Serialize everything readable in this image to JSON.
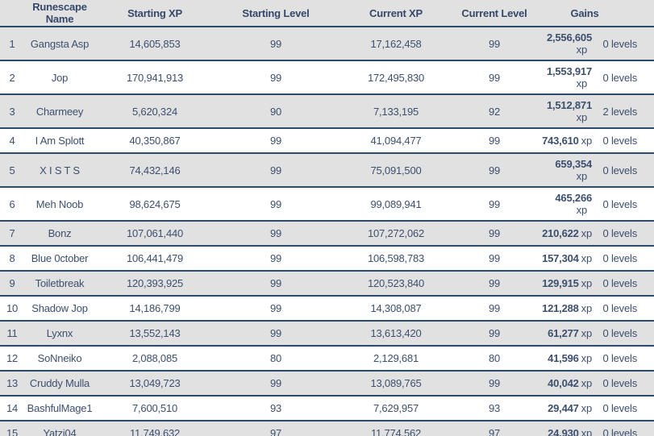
{
  "table": {
    "xp_unit": "xp",
    "columns": {
      "name": "Runescape Name",
      "starting_xp": "Starting XP",
      "starting_level": "Starting Level",
      "current_xp": "Current XP",
      "current_level": "Current Level",
      "gains": "Gains"
    },
    "rows": [
      {
        "rank": "1",
        "name": "Gangsta Asp",
        "starting_xp": "14,605,853",
        "starting_level": "99",
        "current_xp": "17,162,458",
        "current_level": "99",
        "gain_xp": "2,556,605",
        "gain_levels": "0 levels",
        "tall": "yes"
      },
      {
        "rank": "2",
        "name": "Jop",
        "starting_xp": "170,941,913",
        "starting_level": "99",
        "current_xp": "172,495,830",
        "current_level": "99",
        "gain_xp": "1,553,917",
        "gain_levels": "0 levels",
        "tall": "yes"
      },
      {
        "rank": "3",
        "name": "Charmeey",
        "starting_xp": "5,620,324",
        "starting_level": "90",
        "current_xp": "7,133,195",
        "current_level": "92",
        "gain_xp": "1,512,871",
        "gain_levels": "2 levels",
        "tall": "yes"
      },
      {
        "rank": "4",
        "name": "I Am Splott",
        "starting_xp": "40,350,867",
        "starting_level": "99",
        "current_xp": "41,094,477",
        "current_level": "99",
        "gain_xp": "743,610",
        "gain_levels": "0 levels",
        "tall": "no"
      },
      {
        "rank": "5",
        "name": "X I S T S",
        "starting_xp": "74,432,146",
        "starting_level": "99",
        "current_xp": "75,091,500",
        "current_level": "99",
        "gain_xp": "659,354",
        "gain_levels": "0 levels",
        "tall": "yes"
      },
      {
        "rank": "6",
        "name": "Meh Noob",
        "starting_xp": "98,624,675",
        "starting_level": "99",
        "current_xp": "99,089,941",
        "current_level": "99",
        "gain_xp": "465,266",
        "gain_levels": "0 levels",
        "tall": "yes"
      },
      {
        "rank": "7",
        "name": "Bonz",
        "starting_xp": "107,061,440",
        "starting_level": "99",
        "current_xp": "107,272,062",
        "current_level": "99",
        "gain_xp": "210,622",
        "gain_levels": "0 levels",
        "tall": "no"
      },
      {
        "rank": "8",
        "name": "Blue 0ctober",
        "starting_xp": "106,441,479",
        "starting_level": "99",
        "current_xp": "106,598,783",
        "current_level": "99",
        "gain_xp": "157,304",
        "gain_levels": "0 levels",
        "tall": "no"
      },
      {
        "rank": "9",
        "name": "Toiletbreak",
        "starting_xp": "120,393,925",
        "starting_level": "99",
        "current_xp": "120,523,840",
        "current_level": "99",
        "gain_xp": "129,915",
        "gain_levels": "0 levels",
        "tall": "no"
      },
      {
        "rank": "10",
        "name": "Shadow Jop",
        "starting_xp": "14,186,799",
        "starting_level": "99",
        "current_xp": "14,308,087",
        "current_level": "99",
        "gain_xp": "121,288",
        "gain_levels": "0 levels",
        "tall": "no"
      },
      {
        "rank": "11",
        "name": "Lyxnx",
        "starting_xp": "13,552,143",
        "starting_level": "99",
        "current_xp": "13,613,420",
        "current_level": "99",
        "gain_xp": "61,277",
        "gain_levels": "0 levels",
        "tall": "no"
      },
      {
        "rank": "12",
        "name": "SoNneiko",
        "starting_xp": "2,088,085",
        "starting_level": "80",
        "current_xp": "2,129,681",
        "current_level": "80",
        "gain_xp": "41,596",
        "gain_levels": "0 levels",
        "tall": "no"
      },
      {
        "rank": "13",
        "name": "Cruddy Mulla",
        "starting_xp": "13,049,723",
        "starting_level": "99",
        "current_xp": "13,089,765",
        "current_level": "99",
        "gain_xp": "40,042",
        "gain_levels": "0 levels",
        "tall": "no"
      },
      {
        "rank": "14",
        "name": "BashfulMage1",
        "starting_xp": "7,600,510",
        "starting_level": "93",
        "current_xp": "7,629,957",
        "current_level": "93",
        "gain_xp": "29,447",
        "gain_levels": "0 levels",
        "tall": "no"
      },
      {
        "rank": "15",
        "name": "Yatzi04",
        "starting_xp": "11,749,632",
        "starting_level": "97",
        "current_xp": "11,774,562",
        "current_level": "97",
        "gain_xp": "24,930",
        "gain_levels": "0 levels",
        "tall": "no"
      }
    ]
  },
  "colors": {
    "row_alt_bg": "#e1e1e1",
    "row_bg": "#ffffff",
    "separator": "#2d4a6e",
    "text": "#3d4f6f"
  }
}
